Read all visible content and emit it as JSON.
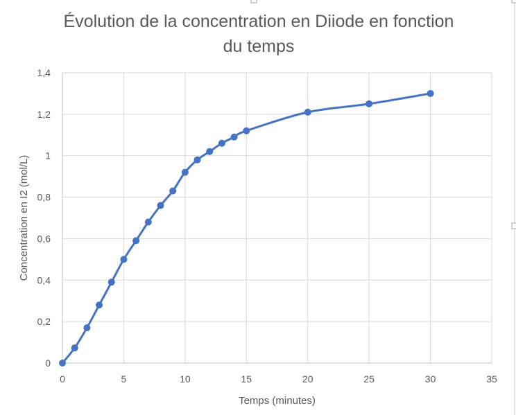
{
  "chart_data": {
    "type": "scatter",
    "title_lines": [
      "Évolution de la concentration en Diiode en fonction",
      "du temps"
    ],
    "xlabel": "Temps (minutes)",
    "ylabel": "Concentration en I2 (mol/L)",
    "xlim": [
      0,
      35
    ],
    "ylim": [
      0,
      1.4
    ],
    "x_ticks": [
      0,
      5,
      10,
      15,
      20,
      25,
      30,
      35
    ],
    "x_tick_labels": [
      "0",
      "5",
      "10",
      "15",
      "20",
      "25",
      "30",
      "35"
    ],
    "y_ticks": [
      0,
      0.2,
      0.4,
      0.6,
      0.8,
      1,
      1.2,
      1.4
    ],
    "y_tick_labels": [
      "0",
      "0,2",
      "0,4",
      "0,6",
      "0,8",
      "1",
      "1,2",
      "1,4"
    ],
    "grid": true,
    "smooth_line": true,
    "series": [
      {
        "color": "#4472c4",
        "x": [
          0,
          1,
          2,
          3,
          4,
          5,
          6,
          7,
          8,
          9,
          10,
          11,
          12,
          13,
          14,
          15,
          20,
          25,
          30
        ],
        "y": [
          0,
          0.073,
          0.17,
          0.28,
          0.39,
          0.5,
          0.59,
          0.68,
          0.76,
          0.83,
          0.92,
          0.98,
          1.02,
          1.06,
          1.09,
          1.12,
          1.21,
          1.25,
          1.3
        ]
      }
    ]
  }
}
